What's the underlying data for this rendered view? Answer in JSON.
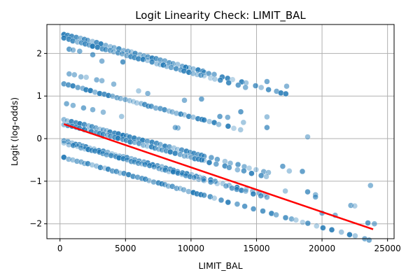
{
  "chart_data": {
    "type": "scatter",
    "title": "Logit Linearity Check: LIMIT_BAL",
    "xlabel": "LIMIT_BAL",
    "ylabel": "Logit (log-odds)",
    "xlim": [
      -1000,
      25500
    ],
    "ylim": [
      -2.35,
      2.68
    ],
    "x_ticks": [
      0,
      5000,
      10000,
      15000,
      20000,
      25000
    ],
    "x_tick_labels": [
      "0",
      "5000",
      "10000",
      "15000",
      "20000",
      "25000"
    ],
    "y_ticks": [
      -2,
      -1,
      0,
      1,
      2
    ],
    "y_tick_labels": [
      "−2",
      "−1",
      "0",
      "1",
      "2"
    ],
    "grid": true,
    "legend": "none",
    "point_color": "#1f77b4",
    "fit_color": "#ff0000",
    "bands": [
      {
        "y_at_zero": 2.48,
        "slope_per_1000": -0.083,
        "x_range": [
          300,
          17300
        ]
      },
      {
        "y_at_zero": 2.38,
        "slope_per_1000": -0.083,
        "x_range": [
          300,
          14500
        ]
      },
      {
        "y_at_zero": 1.31,
        "slope_per_1000": -0.08,
        "x_range": [
          300,
          14000
        ]
      },
      {
        "y_at_zero": 0.47,
        "slope_per_1000": -0.08,
        "x_range": [
          300,
          16000
        ]
      },
      {
        "y_at_zero": 0.36,
        "slope_per_1000": -0.08,
        "x_range": [
          300,
          15800
        ]
      },
      {
        "y_at_zero": -0.03,
        "slope_per_1000": -0.082,
        "x_range": [
          300,
          16000
        ]
      },
      {
        "y_at_zero": -0.08,
        "slope_per_1000": -0.082,
        "x_range": [
          300,
          15800
        ]
      },
      {
        "y_at_zero": -0.42,
        "slope_per_1000": -0.083,
        "x_range": [
          300,
          23900
        ]
      }
    ],
    "scatter_extra": [
      {
        "x": 700,
        "y": 2.1
      },
      {
        "x": 1000,
        "y": 2.08
      },
      {
        "x": 1500,
        "y": 2.05
      },
      {
        "x": 2500,
        "y": 1.97
      },
      {
        "x": 3200,
        "y": 1.82
      },
      {
        "x": 4800,
        "y": 1.8
      },
      {
        "x": 15800,
        "y": 1.34
      },
      {
        "x": 17300,
        "y": 1.23
      },
      {
        "x": 700,
        "y": 1.52
      },
      {
        "x": 1100,
        "y": 1.5
      },
      {
        "x": 1600,
        "y": 1.45
      },
      {
        "x": 2000,
        "y": 1.44
      },
      {
        "x": 2800,
        "y": 1.38
      },
      {
        "x": 3200,
        "y": 1.36
      },
      {
        "x": 4100,
        "y": 1.28
      },
      {
        "x": 12200,
        "y": 0.52
      },
      {
        "x": 12800,
        "y": 0.5
      },
      {
        "x": 13800,
        "y": 0.63
      },
      {
        "x": 14000,
        "y": 0.38
      },
      {
        "x": 15800,
        "y": 0.51
      },
      {
        "x": 15800,
        "y": 0.26
      },
      {
        "x": 18900,
        "y": 0.04
      },
      {
        "x": 500,
        "y": 0.82
      },
      {
        "x": 1000,
        "y": 0.78
      },
      {
        "x": 1800,
        "y": 0.72
      },
      {
        "x": 2500,
        "y": 0.68
      },
      {
        "x": 3300,
        "y": 0.62
      },
      {
        "x": 4700,
        "y": 0.52
      },
      {
        "x": 9000,
        "y": 0.25
      },
      {
        "x": 8800,
        "y": 0.26
      },
      {
        "x": 17000,
        "y": -0.65
      },
      {
        "x": 17500,
        "y": -0.76
      },
      {
        "x": 18500,
        "y": -0.77
      },
      {
        "x": 17200,
        "y": -1.23
      },
      {
        "x": 18900,
        "y": -1.25
      },
      {
        "x": 19500,
        "y": -1.32
      },
      {
        "x": 19500,
        "y": -1.37
      },
      {
        "x": 20000,
        "y": -1.75
      },
      {
        "x": 21000,
        "y": -1.8
      },
      {
        "x": 22200,
        "y": -1.57
      },
      {
        "x": 22500,
        "y": -1.58
      },
      {
        "x": 23700,
        "y": -1.1
      },
      {
        "x": 23500,
        "y": -1.98
      },
      {
        "x": 24000,
        "y": -2.0
      },
      {
        "x": 10800,
        "y": 0.93
      },
      {
        "x": 9500,
        "y": 0.9
      },
      {
        "x": 6000,
        "y": 1.12
      },
      {
        "x": 6700,
        "y": 1.06
      }
    ],
    "fit_line": {
      "x": [
        300,
        23900
      ],
      "y": [
        0.34,
        -2.13
      ]
    }
  }
}
